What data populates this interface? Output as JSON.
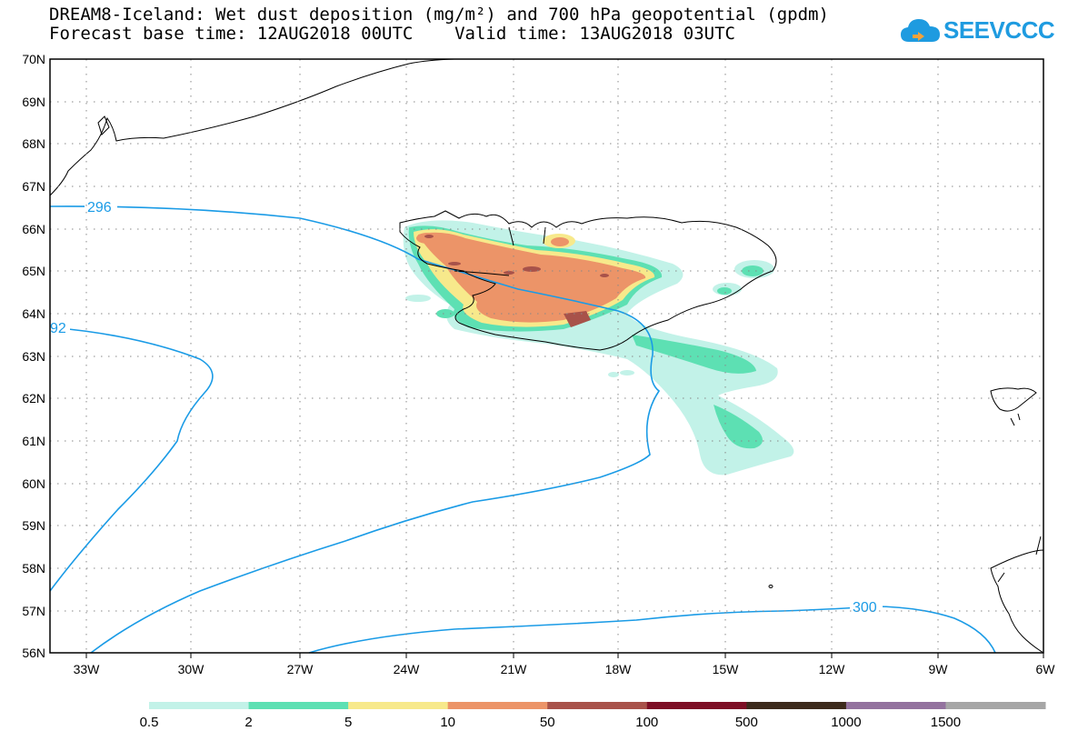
{
  "title_line1": "DREAM8-Iceland: Wet dust deposition (mg/m²) and 700 hPa geopotential (gpdm)",
  "title_line2": "Forecast base time: 12AUG2018 00UTC    Valid time: 13AUG2018 03UTC",
  "logo_text": "SEEVCCC",
  "logo_icon": "cloud-icon",
  "axes": {
    "lon_labels": [
      "33W",
      "30W",
      "27W",
      "24W",
      "21W",
      "18W",
      "15W",
      "12W",
      "9W",
      "6W"
    ],
    "lat_labels": [
      "70N",
      "69N",
      "68N",
      "67N",
      "66N",
      "65N",
      "64N",
      "63N",
      "62N",
      "61N",
      "60N",
      "59N",
      "58N",
      "57N",
      "56N"
    ]
  },
  "contour_labels": [
    "296",
    "92",
    "300"
  ],
  "legend": {
    "labels": [
      "0.5",
      "2",
      "5",
      "10",
      "50",
      "100",
      "500",
      "1000",
      "1500"
    ],
    "colors": [
      "#c2f2e8",
      "#5de0b3",
      "#f7e98b",
      "#ec9468",
      "#a8524a",
      "#7d0f25",
      "#3c2a1c",
      "#93729e",
      "#a6a6a6"
    ]
  },
  "colors": {
    "contour": "#1a9be6",
    "coastline": "#000000"
  }
}
